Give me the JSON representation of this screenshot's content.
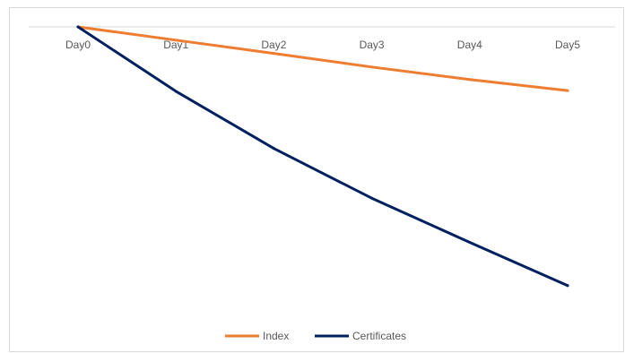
{
  "chart_data": {
    "type": "line",
    "categories": [
      "Day0",
      "Day1",
      "Day2",
      "Day3",
      "Day4",
      "Day5"
    ],
    "series": [
      {
        "name": "Index",
        "color": "#ED7D31",
        "values": [
          0,
          -0.72,
          -1.44,
          -2.18,
          -2.86,
          -3.46
        ]
      },
      {
        "name": "Certificates",
        "color": "#002060",
        "values": [
          0,
          -3.5,
          -6.6,
          -9.3,
          -11.7,
          -14.05
        ]
      }
    ],
    "ylim": [
      -16.2,
      0
    ],
    "grid": false,
    "legend_position": "bottom"
  }
}
